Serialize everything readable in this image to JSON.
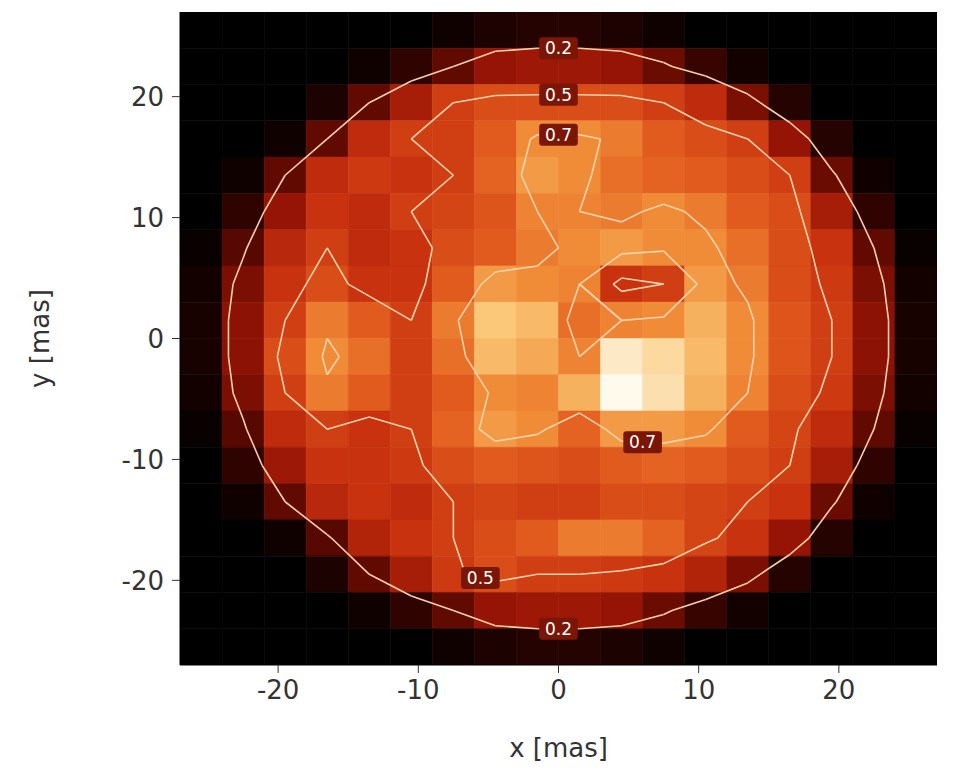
{
  "chart_data": {
    "type": "heatmap",
    "x_label": "x [mas]",
    "y_label": "y [mas]",
    "xlim": [
      -27,
      27
    ],
    "ylim": [
      -27,
      27
    ],
    "xticks": [
      -20,
      -10,
      0,
      10,
      20
    ],
    "yticks": [
      -20,
      -10,
      0,
      10,
      20
    ],
    "grid": false,
    "contour_levels": [
      0.2,
      0.5,
      0.7
    ],
    "x_edges": [
      -27,
      -24,
      -21,
      -18,
      -15,
      -12,
      -9,
      -6,
      -3,
      0,
      3,
      6,
      9,
      12,
      15,
      18,
      21,
      24,
      27
    ],
    "y_edges": [
      27,
      24,
      21,
      18,
      15,
      12,
      9,
      6,
      3,
      0,
      -3,
      -6,
      -9,
      -12,
      -15,
      -18,
      -21,
      -24,
      -27
    ],
    "cells": [
      [
        0,
        0,
        0,
        0,
        0,
        0,
        0.03,
        0.06,
        0.08,
        0.08,
        0.06,
        0.03,
        0,
        0,
        0,
        0,
        0,
        0
      ],
      [
        0,
        0,
        0,
        0,
        0.03,
        0.1,
        0.2,
        0.3,
        0.32,
        0.32,
        0.3,
        0.22,
        0.12,
        0.04,
        0,
        0,
        0,
        0
      ],
      [
        0,
        0,
        0,
        0.06,
        0.2,
        0.35,
        0.5,
        0.55,
        0.55,
        0.55,
        0.55,
        0.5,
        0.42,
        0.25,
        0.08,
        0,
        0,
        0
      ],
      [
        0,
        0,
        0.03,
        0.2,
        0.42,
        0.5,
        0.5,
        0.6,
        0.72,
        0.72,
        0.68,
        0.6,
        0.55,
        0.5,
        0.3,
        0.08,
        0,
        0
      ],
      [
        0,
        0.03,
        0.2,
        0.42,
        0.48,
        0.45,
        0.5,
        0.62,
        0.75,
        0.72,
        0.65,
        0.62,
        0.6,
        0.55,
        0.5,
        0.22,
        0.03,
        0
      ],
      [
        0,
        0.1,
        0.3,
        0.45,
        0.42,
        0.5,
        0.52,
        0.58,
        0.7,
        0.7,
        0.68,
        0.72,
        0.68,
        0.6,
        0.55,
        0.35,
        0.1,
        0
      ],
      [
        0.02,
        0.18,
        0.4,
        0.5,
        0.42,
        0.45,
        0.55,
        0.6,
        0.68,
        0.72,
        0.75,
        0.72,
        0.72,
        0.65,
        0.55,
        0.45,
        0.2,
        0.02
      ],
      [
        0.04,
        0.25,
        0.45,
        0.55,
        0.45,
        0.45,
        0.6,
        0.75,
        0.72,
        0.7,
        0.45,
        0.5,
        0.75,
        0.68,
        0.55,
        0.48,
        0.25,
        0.04
      ],
      [
        0.05,
        0.28,
        0.5,
        0.68,
        0.6,
        0.5,
        0.68,
        0.85,
        0.82,
        0.65,
        0.7,
        0.72,
        0.8,
        0.72,
        0.58,
        0.5,
        0.28,
        0.05
      ],
      [
        0.05,
        0.28,
        0.55,
        0.72,
        0.65,
        0.5,
        0.65,
        0.82,
        0.78,
        0.7,
        0.95,
        0.9,
        0.82,
        0.72,
        0.58,
        0.5,
        0.28,
        0.05
      ],
      [
        0.04,
        0.25,
        0.5,
        0.68,
        0.6,
        0.5,
        0.6,
        0.72,
        0.7,
        0.8,
        1,
        0.92,
        0.8,
        0.7,
        0.55,
        0.48,
        0.25,
        0.04
      ],
      [
        0.02,
        0.18,
        0.42,
        0.5,
        0.45,
        0.5,
        0.62,
        0.75,
        0.72,
        0.62,
        0.75,
        0.75,
        0.72,
        0.6,
        0.52,
        0.42,
        0.2,
        0.02
      ],
      [
        0,
        0.1,
        0.32,
        0.45,
        0.45,
        0.48,
        0.55,
        0.6,
        0.58,
        0.55,
        0.6,
        0.62,
        0.6,
        0.55,
        0.5,
        0.35,
        0.1,
        0
      ],
      [
        0,
        0.03,
        0.2,
        0.4,
        0.45,
        0.42,
        0.5,
        0.52,
        0.5,
        0.5,
        0.55,
        0.55,
        0.52,
        0.5,
        0.45,
        0.22,
        0.03,
        0
      ],
      [
        0,
        0,
        0.03,
        0.18,
        0.38,
        0.45,
        0.5,
        0.55,
        0.6,
        0.68,
        0.68,
        0.62,
        0.52,
        0.45,
        0.3,
        0.08,
        0,
        0
      ],
      [
        0,
        0,
        0,
        0.06,
        0.2,
        0.35,
        0.48,
        0.55,
        0.5,
        0.5,
        0.48,
        0.45,
        0.38,
        0.25,
        0.08,
        0,
        0,
        0
      ],
      [
        0,
        0,
        0,
        0,
        0.03,
        0.1,
        0.2,
        0.3,
        0.32,
        0.32,
        0.3,
        0.22,
        0.12,
        0.04,
        0,
        0,
        0,
        0
      ],
      [
        0,
        0,
        0,
        0,
        0,
        0,
        0.03,
        0.06,
        0.08,
        0.08,
        0.06,
        0.03,
        0,
        0,
        0,
        0,
        0,
        0
      ]
    ]
  }
}
